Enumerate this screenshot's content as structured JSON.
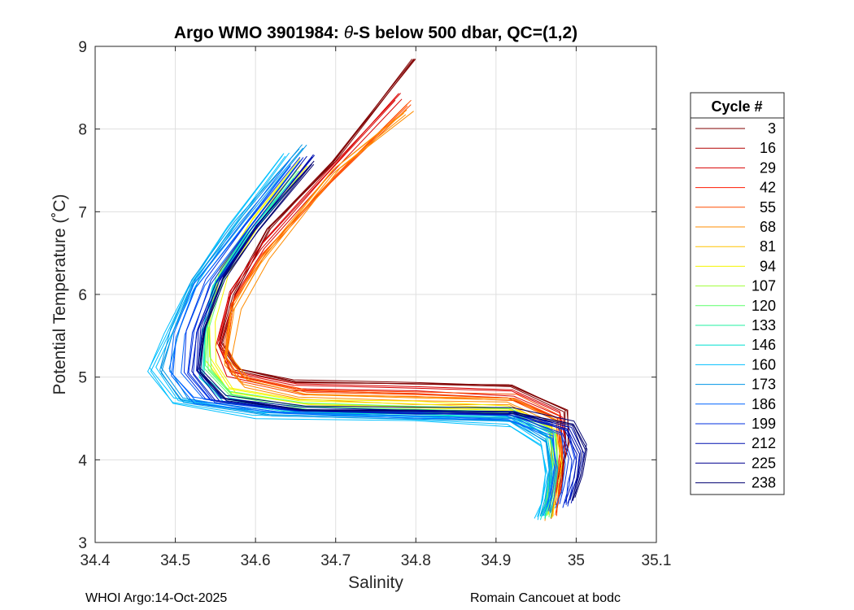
{
  "chart_data": {
    "type": "line",
    "title_prefix": "Argo WMO 3901984: ",
    "title_theta": "θ",
    "title_suffix": "-S below 500 dbar,  QC=(1,2)",
    "xlabel": "Salinity",
    "ylabel": "Potential Temperature (˚C)",
    "xlim": [
      34.4,
      35.1
    ],
    "ylim": [
      3,
      9
    ],
    "xticks": [
      34.4,
      34.5,
      34.6,
      34.7,
      34.8,
      34.9,
      35.0,
      35.1
    ],
    "xtick_labels": [
      "34.4",
      "34.5",
      "34.6",
      "34.7",
      "34.8",
      "34.9",
      "35",
      "35.1"
    ],
    "yticks": [
      3,
      4,
      5,
      6,
      7,
      8,
      9
    ],
    "ytick_labels": [
      "3",
      "4",
      "5",
      "6",
      "7",
      "8",
      "9"
    ],
    "grid": true,
    "legend_title": "Cycle #",
    "legend_position": "outside-right",
    "legend": [
      {
        "label": "3",
        "color": "#800000"
      },
      {
        "label": "16",
        "color": "#b30000"
      },
      {
        "label": "29",
        "color": "#d90000"
      },
      {
        "label": "42",
        "color": "#ff1a00"
      },
      {
        "label": "55",
        "color": "#ff4d00"
      },
      {
        "label": "68",
        "color": "#ff8c00"
      },
      {
        "label": "81",
        "color": "#ffc400"
      },
      {
        "label": "94",
        "color": "#f5f500"
      },
      {
        "label": "107",
        "color": "#a0ff3a"
      },
      {
        "label": "120",
        "color": "#5aff6a"
      },
      {
        "label": "133",
        "color": "#20f0a0"
      },
      {
        "label": "146",
        "color": "#00e0d0"
      },
      {
        "label": "160",
        "color": "#00c0ff"
      },
      {
        "label": "173",
        "color": "#0096e6"
      },
      {
        "label": "186",
        "color": "#0064ff"
      },
      {
        "label": "199",
        "color": "#0030e0"
      },
      {
        "label": "212",
        "color": "#0010b0"
      },
      {
        "label": "225",
        "color": "#00008f"
      },
      {
        "label": "238",
        "color": "#000070"
      }
    ],
    "approx_profile_shapes": [
      {
        "cycle": "3",
        "points": [
          [
            34.8,
            8.85
          ],
          [
            34.7,
            7.6
          ],
          [
            34.62,
            6.8
          ],
          [
            34.575,
            6.0
          ],
          [
            34.56,
            5.4
          ],
          [
            34.58,
            5.1
          ],
          [
            34.65,
            4.95
          ],
          [
            34.8,
            4.92
          ],
          [
            34.92,
            4.9
          ],
          [
            34.99,
            4.6
          ],
          [
            34.99,
            4.2
          ],
          [
            34.985,
            3.9
          ],
          [
            34.98,
            3.6
          ]
        ]
      },
      {
        "cycle": "29",
        "points": [
          [
            34.78,
            8.4
          ],
          [
            34.69,
            7.45
          ],
          [
            34.61,
            6.6
          ],
          [
            34.57,
            6.0
          ],
          [
            34.555,
            5.4
          ],
          [
            34.57,
            5.05
          ],
          [
            34.65,
            4.88
          ],
          [
            34.8,
            4.85
          ],
          [
            34.92,
            4.8
          ],
          [
            34.98,
            4.55
          ],
          [
            34.985,
            4.2
          ],
          [
            34.98,
            3.8
          ],
          [
            34.975,
            3.4
          ]
        ]
      },
      {
        "cycle": "55",
        "points": [
          [
            34.79,
            8.3
          ],
          [
            34.69,
            7.35
          ],
          [
            34.61,
            6.5
          ],
          [
            34.57,
            5.9
          ],
          [
            34.56,
            5.3
          ],
          [
            34.58,
            4.98
          ],
          [
            34.66,
            4.82
          ],
          [
            34.8,
            4.78
          ],
          [
            34.92,
            4.75
          ],
          [
            34.975,
            4.5
          ],
          [
            34.98,
            4.1
          ],
          [
            34.975,
            3.7
          ],
          [
            34.97,
            3.3
          ]
        ]
      },
      {
        "cycle": "68",
        "points": [
          [
            34.79,
            8.2
          ],
          [
            34.7,
            7.5
          ],
          [
            34.61,
            6.4
          ],
          [
            34.575,
            5.8
          ],
          [
            34.565,
            5.2
          ],
          [
            34.59,
            4.92
          ],
          [
            34.66,
            4.76
          ],
          [
            34.8,
            4.72
          ],
          [
            34.92,
            4.7
          ],
          [
            34.975,
            4.45
          ],
          [
            34.975,
            4.0
          ],
          [
            34.97,
            3.6
          ],
          [
            34.965,
            3.3
          ]
        ]
      },
      {
        "cycle": "94",
        "points": [
          [
            34.66,
            7.6
          ],
          [
            34.6,
            6.9
          ],
          [
            34.56,
            6.3
          ],
          [
            34.545,
            5.7
          ],
          [
            34.545,
            5.2
          ],
          [
            34.57,
            4.85
          ],
          [
            34.66,
            4.7
          ],
          [
            34.8,
            4.66
          ],
          [
            34.92,
            4.63
          ],
          [
            34.97,
            4.4
          ],
          [
            34.975,
            4.0
          ],
          [
            34.97,
            3.6
          ],
          [
            34.965,
            3.35
          ]
        ]
      },
      {
        "cycle": "120",
        "points": [
          [
            34.65,
            7.5
          ],
          [
            34.595,
            6.8
          ],
          [
            34.555,
            6.2
          ],
          [
            34.54,
            5.6
          ],
          [
            34.54,
            5.1
          ],
          [
            34.57,
            4.78
          ],
          [
            34.66,
            4.64
          ],
          [
            34.8,
            4.6
          ],
          [
            34.92,
            4.58
          ],
          [
            34.97,
            4.35
          ],
          [
            34.975,
            3.95
          ],
          [
            34.97,
            3.55
          ],
          [
            34.965,
            3.3
          ]
        ]
      },
      {
        "cycle": "146",
        "points": [
          [
            34.65,
            7.4
          ],
          [
            34.59,
            6.7
          ],
          [
            34.55,
            6.1
          ],
          [
            34.535,
            5.5
          ],
          [
            34.535,
            5.0
          ],
          [
            34.565,
            4.72
          ],
          [
            34.66,
            4.58
          ],
          [
            34.8,
            4.55
          ],
          [
            34.92,
            4.53
          ],
          [
            34.965,
            4.3
          ],
          [
            34.97,
            3.9
          ],
          [
            34.965,
            3.5
          ],
          [
            34.96,
            3.3
          ]
        ]
      },
      {
        "cycle": "160",
        "points": [
          [
            34.64,
            7.7
          ],
          [
            34.57,
            6.8
          ],
          [
            34.52,
            6.1
          ],
          [
            34.49,
            5.5
          ],
          [
            34.47,
            5.1
          ],
          [
            34.5,
            4.72
          ],
          [
            34.6,
            4.55
          ],
          [
            34.8,
            4.5
          ],
          [
            34.92,
            4.45
          ],
          [
            34.96,
            4.2
          ],
          [
            34.965,
            3.85
          ],
          [
            34.96,
            3.5
          ],
          [
            34.955,
            3.3
          ]
        ]
      },
      {
        "cycle": "173",
        "points": [
          [
            34.66,
            7.8
          ],
          [
            34.58,
            6.9
          ],
          [
            34.525,
            6.2
          ],
          [
            34.5,
            5.6
          ],
          [
            34.485,
            5.1
          ],
          [
            34.51,
            4.74
          ],
          [
            34.62,
            4.58
          ],
          [
            34.8,
            4.54
          ],
          [
            34.92,
            4.5
          ],
          [
            34.965,
            4.25
          ],
          [
            34.97,
            3.9
          ],
          [
            34.965,
            3.55
          ],
          [
            34.96,
            3.35
          ]
        ]
      },
      {
        "cycle": "186",
        "points": [
          [
            34.65,
            7.6
          ],
          [
            34.58,
            6.75
          ],
          [
            34.53,
            6.1
          ],
          [
            34.505,
            5.5
          ],
          [
            34.5,
            5.05
          ],
          [
            34.53,
            4.72
          ],
          [
            34.64,
            4.58
          ],
          [
            34.8,
            4.55
          ],
          [
            34.92,
            4.52
          ],
          [
            34.975,
            4.3
          ],
          [
            34.98,
            3.95
          ],
          [
            34.975,
            3.6
          ],
          [
            34.97,
            3.4
          ]
        ]
      },
      {
        "cycle": "199",
        "points": [
          [
            34.66,
            7.65
          ],
          [
            34.59,
            6.8
          ],
          [
            34.545,
            6.15
          ],
          [
            34.52,
            5.55
          ],
          [
            34.515,
            5.05
          ],
          [
            34.545,
            4.72
          ],
          [
            34.65,
            4.6
          ],
          [
            34.8,
            4.58
          ],
          [
            34.92,
            4.56
          ],
          [
            34.985,
            4.35
          ],
          [
            34.995,
            4.0
          ],
          [
            34.99,
            3.7
          ],
          [
            34.985,
            3.45
          ]
        ]
      },
      {
        "cycle": "212",
        "points": [
          [
            34.67,
            7.7
          ],
          [
            34.6,
            6.85
          ],
          [
            34.555,
            6.2
          ],
          [
            34.53,
            5.6
          ],
          [
            34.525,
            5.1
          ],
          [
            34.555,
            4.75
          ],
          [
            34.66,
            4.62
          ],
          [
            34.8,
            4.6
          ],
          [
            34.92,
            4.58
          ],
          [
            34.99,
            4.4
          ],
          [
            35.005,
            4.1
          ],
          [
            35.0,
            3.8
          ],
          [
            34.99,
            3.5
          ]
        ]
      },
      {
        "cycle": "238",
        "points": [
          [
            34.67,
            7.6
          ],
          [
            34.6,
            6.8
          ],
          [
            34.56,
            6.2
          ],
          [
            34.535,
            5.6
          ],
          [
            34.53,
            5.1
          ],
          [
            34.56,
            4.76
          ],
          [
            34.66,
            4.63
          ],
          [
            34.8,
            4.62
          ],
          [
            34.92,
            4.6
          ],
          [
            34.995,
            4.45
          ],
          [
            35.01,
            4.15
          ],
          [
            35.005,
            3.85
          ],
          [
            34.995,
            3.55
          ]
        ]
      }
    ]
  },
  "footer": {
    "left": "WHOI Argo:14-Oct-2025",
    "right": "Romain Cancouet at bodc"
  }
}
